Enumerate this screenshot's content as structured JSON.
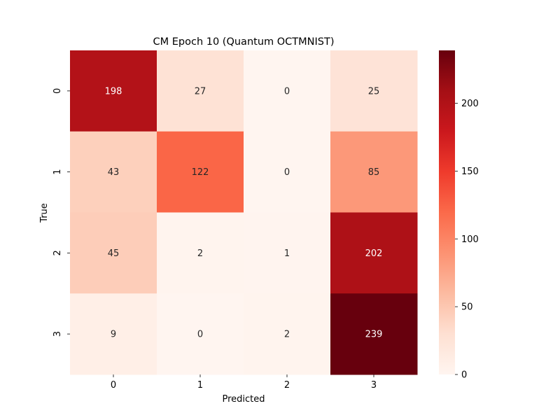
{
  "chart_data": {
    "type": "heatmap",
    "title": "CM Epoch 10 (Quantum OCTMNIST)",
    "xlabel": "Predicted",
    "ylabel": "True",
    "x_categories": [
      "0",
      "1",
      "2",
      "3"
    ],
    "y_categories": [
      "0",
      "1",
      "2",
      "3"
    ],
    "values": [
      [
        198,
        27,
        0,
        25
      ],
      [
        43,
        122,
        0,
        85
      ],
      [
        45,
        2,
        1,
        202
      ],
      [
        9,
        0,
        2,
        239
      ]
    ],
    "colormap": "Reds",
    "color_range": [
      0,
      239
    ],
    "colorbar_ticks": [
      0,
      50,
      100,
      150,
      200
    ],
    "colors": [
      "#fff5f0",
      "#fee0d2",
      "#fcbba1",
      "#fc9272",
      "#fb6a4a",
      "#ef3b2c",
      "#cb181d",
      "#a50f15",
      "#67000d"
    ]
  }
}
